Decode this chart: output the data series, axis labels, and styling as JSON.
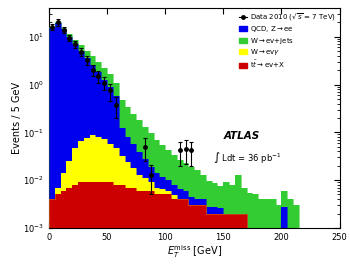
{
  "xlabel": "$E_T^{\\mathrm{miss}}$ [GeV]",
  "ylabel": "Events / 5 GeV",
  "xlim": [
    0,
    250
  ],
  "ylim": [
    0.001,
    40
  ],
  "bin_edges": [
    0,
    5,
    10,
    15,
    20,
    25,
    30,
    35,
    40,
    45,
    50,
    55,
    60,
    65,
    70,
    75,
    80,
    85,
    90,
    95,
    100,
    105,
    110,
    115,
    120,
    125,
    130,
    135,
    140,
    145,
    150,
    155,
    160,
    165,
    170,
    175,
    180,
    185,
    190,
    195,
    200,
    205,
    210,
    215,
    220,
    225,
    230,
    235,
    240,
    245,
    250
  ],
  "qcd_zee": [
    15.5,
    19.5,
    14.5,
    10.0,
    7.0,
    5.0,
    3.5,
    2.5,
    1.75,
    1.2,
    0.82,
    0.52,
    0.09,
    0.055,
    0.038,
    0.025,
    0.016,
    0.01,
    0.007,
    0.005,
    0.004,
    0.003,
    0.0025,
    0.002,
    0.0015,
    0.001,
    0.001,
    0.0008,
    0.0007,
    0.0006,
    0.0,
    0.0,
    0.0,
    0.0,
    0.0,
    0.0,
    0.0,
    0.0,
    0.0,
    0.0,
    0.0018,
    0.0,
    0.0,
    0.0,
    0.0,
    0.0,
    0.0,
    0.0,
    0.0,
    0.0
  ],
  "w_ev_jets": [
    0.4,
    0.7,
    1.0,
    1.2,
    1.4,
    1.55,
    1.45,
    1.35,
    1.15,
    0.95,
    0.75,
    0.52,
    0.36,
    0.26,
    0.19,
    0.14,
    0.1,
    0.076,
    0.056,
    0.042,
    0.032,
    0.025,
    0.02,
    0.017,
    0.014,
    0.012,
    0.009,
    0.007,
    0.006,
    0.005,
    0.007,
    0.006,
    0.011,
    0.005,
    0.0045,
    0.004,
    0.003,
    0.003,
    0.003,
    0.002,
    0.003,
    0.003,
    0.003,
    0.0,
    0.0,
    0.0,
    0.0,
    0.0,
    0.0,
    0.0
  ],
  "w_evy": [
    0.0,
    0.002,
    0.008,
    0.018,
    0.038,
    0.058,
    0.068,
    0.078,
    0.072,
    0.063,
    0.048,
    0.038,
    0.024,
    0.017,
    0.011,
    0.007,
    0.005,
    0.003,
    0.002,
    0.0015,
    0.001,
    0.0008,
    0.0,
    0.0,
    0.0,
    0.0,
    0.0,
    0.0,
    0.0,
    0.0,
    0.0,
    0.0,
    0.0,
    0.0,
    0.0,
    0.0,
    0.0,
    0.0,
    0.0,
    0.0,
    0.0,
    0.0,
    0.0,
    0.0,
    0.0,
    0.0,
    0.0,
    0.0,
    0.0,
    0.0
  ],
  "tt_evX": [
    0.004,
    0.005,
    0.006,
    0.007,
    0.008,
    0.009,
    0.009,
    0.009,
    0.009,
    0.009,
    0.009,
    0.008,
    0.008,
    0.007,
    0.007,
    0.006,
    0.006,
    0.006,
    0.005,
    0.005,
    0.005,
    0.004,
    0.004,
    0.004,
    0.003,
    0.003,
    0.003,
    0.002,
    0.002,
    0.002,
    0.002,
    0.002,
    0.002,
    0.002,
    0.001,
    0.001,
    0.001,
    0.001,
    0.001,
    0.001,
    0.001,
    0.001,
    0.0,
    0.0,
    0.0,
    0.0,
    0.0,
    0.0,
    0.0,
    0.0
  ],
  "data_x": [
    2.5,
    7.5,
    12.5,
    17.5,
    22.5,
    27.5,
    32.5,
    37.5,
    42.5,
    47.5,
    52.5,
    57.5,
    82.5,
    87.5,
    112.5,
    117.5,
    122.5
  ],
  "data_y": [
    16.0,
    20.0,
    14.0,
    9.5,
    7.0,
    4.8,
    3.2,
    2.0,
    1.5,
    1.1,
    0.75,
    0.38,
    0.05,
    0.013,
    0.042,
    0.045,
    0.042
  ],
  "data_yerr_lo": [
    2.5,
    3.0,
    2.2,
    1.5,
    1.2,
    0.9,
    0.7,
    0.5,
    0.4,
    0.35,
    0.3,
    0.18,
    0.025,
    0.008,
    0.022,
    0.023,
    0.022
  ],
  "data_yerr_hi": [
    2.5,
    3.0,
    2.2,
    1.5,
    1.2,
    0.9,
    0.7,
    0.5,
    0.4,
    0.35,
    0.3,
    0.18,
    0.025,
    0.008,
    0.022,
    0.023,
    0.022
  ],
  "color_qcd": "#0000ee",
  "color_wjets": "#33cc33",
  "color_wevy": "#ffff00",
  "color_tt": "#cc0000",
  "legend_labels": [
    "Data 2010 ($\\sqrt{s}$ = 7 TeV)",
    "QCD, Z$\\rightarrow$ee",
    "W$\\rightarrow$ev+jets",
    "W$\\rightarrow$ev$\\gamma$",
    "t$\\bar{t}$$\\rightarrow$ev+X"
  ],
  "atlas_text": "ATLAS",
  "lumi_text": "$\\int$ Ldt = 36 pb$^{-1}$"
}
